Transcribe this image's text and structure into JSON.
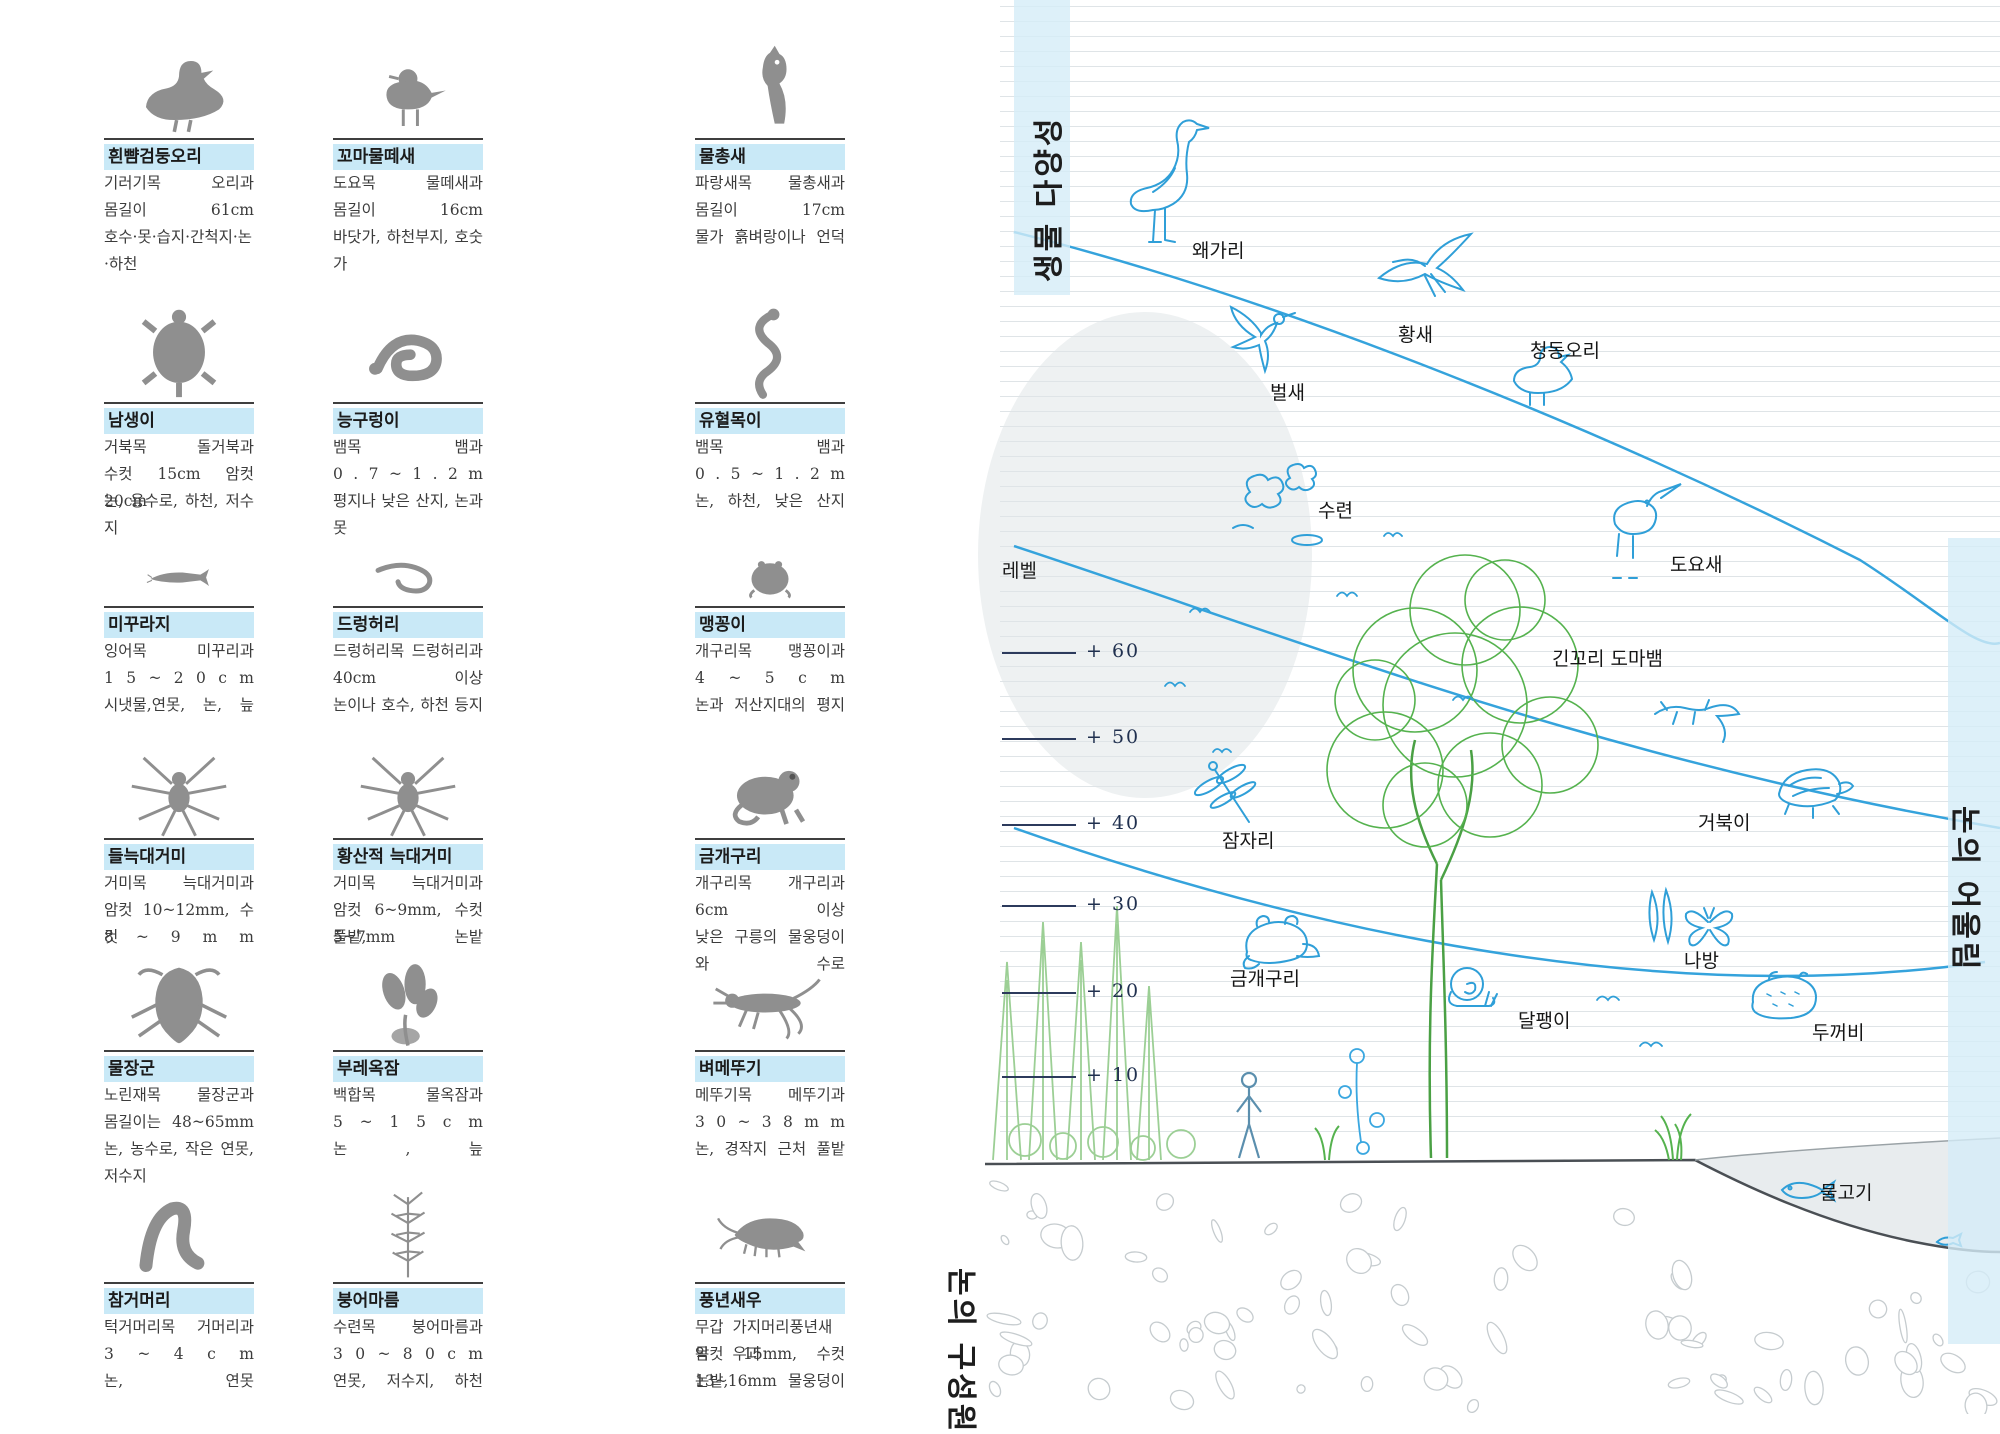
{
  "left_panel": {
    "cards": [
      {
        "id": "spot-billed-duck",
        "icon": "duck-photo",
        "title": "흰뺨검둥오리",
        "rows": [
          {
            "l": "기러기목",
            "r": "오리과"
          },
          {
            "l": "몸길이",
            "r": "61cm"
          },
          {
            "l": "호수·못·습지·간척지·논·하천"
          }
        ]
      },
      {
        "id": "little-ringed-plover",
        "icon": "plover-photo",
        "title": "꼬마물떼새",
        "rows": [
          {
            "l": "도요목",
            "r": "물떼새과"
          },
          {
            "l": "몸길이",
            "r": "16cm"
          },
          {
            "l": "바닷가, 하천부지, 호숫가"
          }
        ]
      },
      {
        "id": "kingfisher",
        "icon": "kingfisher-photo",
        "title": "물총새",
        "rows": [
          {
            "l": "파랑새목",
            "r": "물총새과"
          },
          {
            "l": "몸길이",
            "r": "17cm"
          },
          {
            "l": "물가 흙벼랑이나 언덕"
          }
        ]
      },
      {
        "id": "pond-turtle",
        "icon": "turtle-photo",
        "title": "남생이",
        "rows": [
          {
            "l": "거북목",
            "r": "돌거북과"
          },
          {
            "l": "수컷 15cm 암컷 20cm"
          },
          {
            "l": "논, 용수로, 하천, 저수지"
          }
        ]
      },
      {
        "id": "red-banded-snake",
        "icon": "snake-coil-photo",
        "title": "능구렁이",
        "rows": [
          {
            "l": "뱀목",
            "r": "뱀과"
          },
          {
            "l": "0 . 7 ~ 1 . 2 m"
          },
          {
            "l": "평지나 낮은 산지, 논과 못"
          }
        ]
      },
      {
        "id": "tiger-keelback",
        "icon": "snake-s-photo",
        "title": "유혈목이",
        "rows": [
          {
            "l": "뱀목",
            "r": "뱀과"
          },
          {
            "l": "0 . 5 ~ 1 . 2 m"
          },
          {
            "l": "논, 하천, 낮은 산지"
          }
        ]
      },
      {
        "id": "loach",
        "icon": "loach-photo",
        "title": "미꾸라지",
        "rows": [
          {
            "l": "잉어목",
            "r": "미꾸리과"
          },
          {
            "l": "1 5 ~ 2 0 c m"
          },
          {
            "l": "시냇물,연못, 논, 늪"
          }
        ]
      },
      {
        "id": "swamp-eel",
        "icon": "eel-photo",
        "title": "드렁허리",
        "rows": [
          {
            "l": "드렁허리목",
            "r": "드렁허리과"
          },
          {
            "l": "40cm",
            "r": "이상"
          },
          {
            "l": "논이나 호수, 하천 등지"
          }
        ]
      },
      {
        "id": "narrow-mouth-frog",
        "icon": "round-frog-photo",
        "title": "맹꽁이",
        "rows": [
          {
            "l": "개구리목",
            "r": "맹꽁이과"
          },
          {
            "l": "4 ~ 5 c m"
          },
          {
            "l": "논과 저산지대의 평지"
          }
        ]
      },
      {
        "id": "field-wolf-spider",
        "icon": "spider-photo",
        "title": "들늑대거미",
        "rows": [
          {
            "l": "거미목",
            "r": "늑대거미과"
          },
          {
            "l": "암컷 10~12mm, 수컷"
          },
          {
            "l": "8 ~ 9 m m"
          }
        ]
      },
      {
        "id": "yellow-wolf-spider",
        "icon": "spider-photo",
        "title": "황산적 늑대거미",
        "rows": [
          {
            "l": "거미목",
            "r": "늑대거미과"
          },
          {
            "l": "암컷 6~9mm, 수컷 5~7mm"
          },
          {
            "l": "풀밭,",
            "r": "논밭"
          }
        ]
      },
      {
        "id": "gold-frog",
        "icon": "frog-photo",
        "title": "금개구리",
        "rows": [
          {
            "l": "개구리목",
            "r": "개구리과"
          },
          {
            "l": "6cm",
            "r": "이상"
          },
          {
            "l": "낮은 구릉의 물웅덩이와 수로"
          }
        ]
      },
      {
        "id": "giant-water-bug",
        "icon": "water-bug-photo",
        "title": "물장군",
        "rows": [
          {
            "l": "노린재목",
            "r": "물장군과"
          },
          {
            "l": "몸길이는",
            "r": "48~65mm"
          },
          {
            "l": "논, 농수로, 작은 연못, 저수지"
          }
        ]
      },
      {
        "id": "water-hyacinth",
        "icon": "plant-photo",
        "title": "부레옥잠",
        "rows": [
          {
            "l": "백합목",
            "r": "물옥잠과"
          },
          {
            "l": "5 ~ 1 5 c m"
          },
          {
            "l": "논 , 늪"
          }
        ]
      },
      {
        "id": "rice-grasshopper",
        "icon": "grasshopper-photo",
        "title": "벼메뚜기",
        "rows": [
          {
            "l": "메뚜기목",
            "r": "메뚜기과"
          },
          {
            "l": "3 0 ~ 3 8 m m"
          },
          {
            "l": "논, 경작지 근처 풀밭"
          }
        ]
      },
      {
        "id": "leech",
        "icon": "leech-photo",
        "title": "참거머리",
        "rows": [
          {
            "l": "턱거머리목",
            "r": "거머리과"
          },
          {
            "l": "3 ~ 4 c m"
          },
          {
            "l": "논,",
            "r": "연못"
          }
        ]
      },
      {
        "id": "hornwort",
        "icon": "hornwort-photo",
        "title": "붕어마름",
        "rows": [
          {
            "l": "수련목",
            "r": "붕어마름과"
          },
          {
            "l": "3 0 ~ 8 0 c m"
          },
          {
            "l": "연못, 저수지, 하천"
          }
        ]
      },
      {
        "id": "fairy-shrimp",
        "icon": "shrimp-photo",
        "title": "풍년새우",
        "rows": [
          {
            "l": "무갑목",
            "r": "가지머리풍년새우과"
          },
          {
            "l": "암컷 15mm, 수컷 13~16mm"
          },
          {
            "l": "논밭,",
            "r": "물웅덩이"
          }
        ]
      }
    ]
  },
  "diagram": {
    "side_labels": {
      "top_left": "생물 다양성",
      "right": "논의 어울림",
      "bottom_left": "논의 구성원"
    },
    "level_scale": {
      "title": "레벨",
      "levels": [
        "+ 60",
        "+ 50",
        "+ 40",
        "+ 30",
        "+ 20",
        "+ 10"
      ]
    },
    "animal_labels": [
      "왜가리",
      "황새",
      "청동오리",
      "벌새",
      "수련",
      "도요새",
      "긴꼬리 도마뱀",
      "잠자리",
      "거북이",
      "금개구리",
      "나방",
      "달팽이",
      "두꺼비",
      "물고기"
    ],
    "colors": {
      "accent_blue": "#2f9fd8",
      "band_blue": "#d6ecf8",
      "leaf_green": "#55b24e",
      "title_bar_blue": "#c9e9f7",
      "ruled_line": "#dfe4e7",
      "ground": "#4a4f54"
    }
  }
}
